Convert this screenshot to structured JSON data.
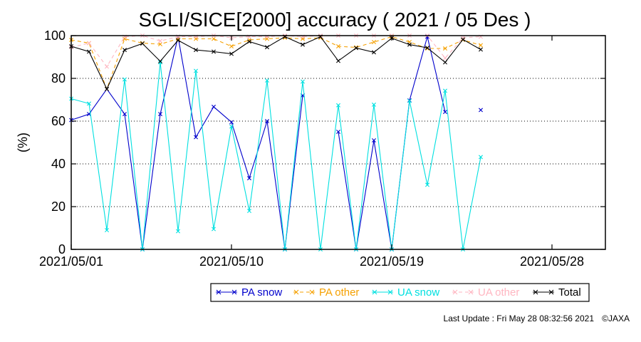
{
  "chart_data": {
    "type": "line",
    "title": "SGLI/SICE[2000] accuracy ( 2021 / 05 Des )",
    "ylabel": "(%)",
    "xlabel": "",
    "ylim": [
      0,
      100
    ],
    "yticks": [
      0,
      20,
      40,
      60,
      80,
      100
    ],
    "xlim": [
      "2021/05/01",
      "2021/05/31"
    ],
    "xticks": [
      "2021/05/01",
      "2021/05/10",
      "2021/05/19",
      "2021/05/28"
    ],
    "grid": "horizontal dotted",
    "legend_position": "bottom",
    "x": [
      "2021/05/01",
      "2021/05/02",
      "2021/05/03",
      "2021/05/04",
      "2021/05/05",
      "2021/05/06",
      "2021/05/07",
      "2021/05/08",
      "2021/05/09",
      "2021/05/10",
      "2021/05/11",
      "2021/05/12",
      "2021/05/13",
      "2021/05/14",
      "2021/05/15",
      "2021/05/16",
      "2021/05/17",
      "2021/05/18",
      "2021/05/19",
      "2021/05/20",
      "2021/05/21",
      "2021/05/22",
      "2021/05/23",
      "2021/05/24"
    ],
    "series": [
      {
        "name": "PA snow",
        "color": "#0000cc",
        "marker": "x",
        "values": [
          60.5,
          63.3,
          75,
          63.3,
          0,
          63.3,
          99.5,
          52.5,
          66.7,
          59.5,
          33.3,
          60,
          0,
          72,
          null,
          55,
          0,
          51,
          0,
          69.7,
          99.5,
          64.3,
          null,
          65.2
        ],
        "segments": [
          [
            0,
            23
          ]
        ]
      },
      {
        "name": "PA other",
        "color": "#f5a000",
        "marker": "x",
        "dash": "5,4",
        "values": [
          98,
          96.5,
          75,
          98.5,
          96.5,
          96,
          98.5,
          98.5,
          98.5,
          95,
          98,
          98.5,
          99,
          98.5,
          99,
          95,
          94.5,
          97,
          99.5,
          97,
          94,
          94,
          98,
          95.5
        ]
      },
      {
        "name": "UA snow",
        "color": "#00e0e0",
        "marker": "x",
        "values": [
          70.5,
          68.2,
          9,
          79.5,
          0,
          87.5,
          8.5,
          83.5,
          9.5,
          57.5,
          18,
          79,
          0,
          78.5,
          0,
          67.4,
          0,
          67.7,
          0,
          69.5,
          30.2,
          74.2,
          0,
          43.2
        ]
      },
      {
        "name": "UA other",
        "color": "#ffb6c1",
        "marker": "x",
        "dash": "5,4",
        "values": [
          94.5,
          96.5,
          85.5,
          99.5,
          100,
          97.5,
          99.5,
          99.5,
          100,
          99,
          99.5,
          99.5,
          100,
          99.5,
          100,
          100,
          100,
          100,
          100,
          100,
          100,
          89.5,
          99,
          99.5
        ]
      },
      {
        "name": "Total",
        "color": "#000000",
        "marker": "x",
        "values": [
          95,
          92.5,
          75,
          93.3,
          96.3,
          88,
          97.8,
          93.3,
          92.5,
          91.5,
          97.2,
          94.6,
          99.5,
          95.8,
          99.5,
          88.2,
          94.2,
          92.2,
          98.8,
          95.8,
          94.3,
          87.5,
          98.2,
          93.5
        ]
      }
    ]
  },
  "footer": {
    "last_update": "Last Update : Fri May 28 08:32:56 2021",
    "copyright": "©JAXA"
  }
}
